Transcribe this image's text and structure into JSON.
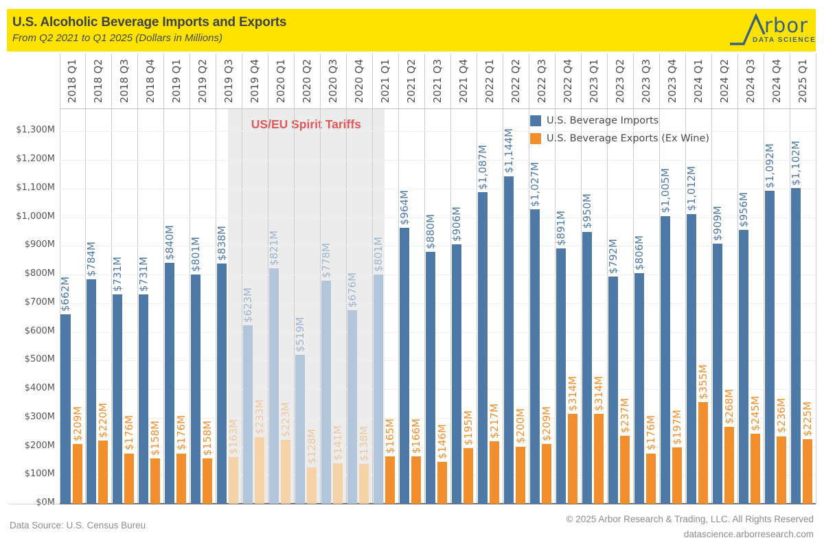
{
  "header": {
    "logo": {
      "name": "Arbor",
      "tagline": "DATA SCIENCE"
    }
  },
  "footer": {
    "source": "Data Source: U.S. Census Bureu",
    "copyright": "© 2025 Arbor Research & Trading, LLC. All Rights Reserved",
    "website": "datascience.arborresearch.com"
  },
  "chart_data": {
    "type": "bar",
    "title": "U.S. Alcoholic Beverage Imports and Exports",
    "subtitle": "From Q2 2021 to Q1 2025 (Dollars in Millions)",
    "categories": [
      "2018 Q1",
      "2018 Q2",
      "2018 Q3",
      "2018 Q4",
      "2019 Q1",
      "2019 Q2",
      "2019 Q3",
      "2019 Q4",
      "2020 Q1",
      "2020 Q2",
      "2020 Q3",
      "2020 Q4",
      "2021 Q1",
      "2021 Q2",
      "2021 Q3",
      "2021 Q4",
      "2022 Q1",
      "2022 Q2",
      "2022 Q3",
      "2022 Q4",
      "2023 Q1",
      "2023 Q2",
      "2023 Q3",
      "2023 Q4",
      "2024 Q1",
      "2024 Q2",
      "2024 Q3",
      "2024 Q4",
      "2025 Q1"
    ],
    "series": [
      {
        "name": "U.S. Beverage Imports",
        "color": "#4E79A7",
        "faded_color": "#B2C5DB",
        "faded_label_color": "#9DB6D0",
        "values": [
          662,
          784,
          731,
          731,
          840,
          801,
          838,
          623,
          821,
          519,
          778,
          676,
          801,
          964,
          880,
          906,
          1087,
          1144,
          1027,
          891,
          950,
          792,
          806,
          1005,
          1012,
          909,
          956,
          1092,
          1102
        ],
        "faded_indices": [
          7,
          8,
          9,
          10,
          11,
          12
        ]
      },
      {
        "name": "U.S. Beverage Exports (Ex Wine)",
        "color": "#F28E2B",
        "faded_color": "#F5D2A7",
        "faded_label_color": "#EFC79B",
        "values": [
          209,
          220,
          176,
          158,
          176,
          158,
          163,
          233,
          223,
          128,
          141,
          138,
          165,
          166,
          146,
          195,
          217,
          200,
          209,
          314,
          314,
          237,
          176,
          197,
          355,
          268,
          245,
          236,
          225
        ],
        "faded_indices": [
          6,
          7,
          8,
          9,
          10,
          11
        ]
      }
    ],
    "y_ticks": [
      "$0M",
      "$100M",
      "$200M",
      "$300M",
      "$400M",
      "$500M",
      "$600M",
      "$700M",
      "$800M",
      "$900M",
      "$1,000M",
      "$1,100M",
      "$1,200M",
      "$1,300M"
    ],
    "ylim": [
      0,
      1300
    ],
    "grid": true,
    "legend_position": "upper-right-inside",
    "value_label_format": "$#,##0M",
    "annotation": {
      "label": "US/EU Spirit Tariffs",
      "color": "#E15759",
      "from_category": "2019 Q3",
      "to_category": "2021 Q1"
    }
  }
}
